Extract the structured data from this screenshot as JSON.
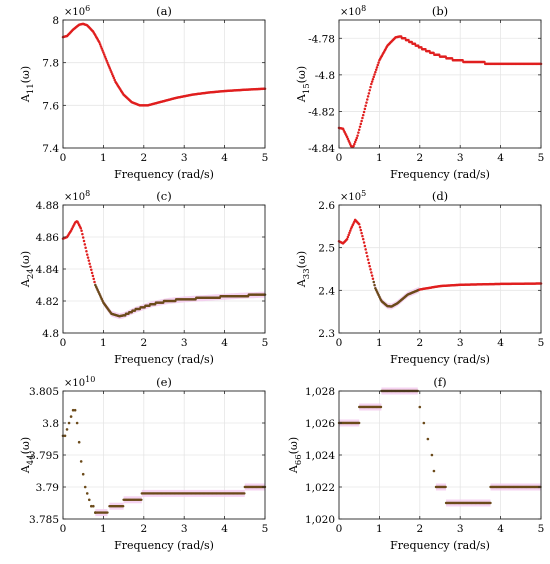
{
  "figure": {
    "description": ""
  },
  "chart_data": [
    {
      "type": "scatter",
      "title": "(a)",
      "xlabel": "Frequency (rad/s)",
      "ylabel": "A11(ω)",
      "ylabel_main": "A",
      "ylabel_sub": "11",
      "ylabel_tail": "(ω)",
      "exponent": "×10",
      "exponent_power": "6",
      "xlim": [
        0,
        5
      ],
      "ylim": [
        7.4,
        8.0
      ],
      "xticks": [
        0,
        1,
        2,
        3,
        4,
        5
      ],
      "xtick_labels": [
        "0",
        "1",
        "2",
        "3",
        "4",
        "5"
      ],
      "yticks": [
        7.4,
        7.6,
        7.8,
        8.0
      ],
      "ytick_labels": [
        "7.4",
        "7.6",
        "7.8",
        "8"
      ],
      "grid": true,
      "color": "#e01f1f",
      "curve": [
        [
          0,
          7.92
        ],
        [
          0.1,
          7.925
        ],
        [
          0.25,
          7.955
        ],
        [
          0.4,
          7.978
        ],
        [
          0.5,
          7.982
        ],
        [
          0.6,
          7.975
        ],
        [
          0.75,
          7.945
        ],
        [
          0.9,
          7.895
        ],
        [
          1.1,
          7.8
        ],
        [
          1.3,
          7.71
        ],
        [
          1.5,
          7.65
        ],
        [
          1.7,
          7.615
        ],
        [
          1.9,
          7.6
        ],
        [
          2.1,
          7.6
        ],
        [
          2.4,
          7.615
        ],
        [
          2.8,
          7.635
        ],
        [
          3.2,
          7.65
        ],
        [
          3.6,
          7.66
        ],
        [
          4.0,
          7.667
        ],
        [
          4.5,
          7.673
        ],
        [
          5.0,
          7.678
        ]
      ]
    },
    {
      "type": "scatter",
      "title": "(b)",
      "xlabel": "Frequency (rad/s)",
      "ylabel": "A15(ω)",
      "ylabel_main": "A",
      "ylabel_sub": "15",
      "ylabel_tail": "(ω)",
      "exponent": "×10",
      "exponent_power": "8",
      "xlim": [
        0,
        5
      ],
      "ylim": [
        -4.84,
        -4.77
      ],
      "xticks": [
        0,
        1,
        2,
        3,
        4,
        5
      ],
      "xtick_labels": [
        "0",
        "1",
        "2",
        "3",
        "4",
        "5"
      ],
      "yticks": [
        -4.84,
        -4.82,
        -4.8,
        -4.78
      ],
      "ytick_labels": [
        "-4.84",
        "-4.82",
        "-4.8",
        "-4.78"
      ],
      "grid": true,
      "color": "#e01f1f",
      "curve": [
        [
          0,
          -4.829
        ],
        [
          0.1,
          -4.8295
        ],
        [
          0.2,
          -4.834
        ],
        [
          0.3,
          -4.839
        ],
        [
          0.35,
          -4.8395
        ],
        [
          0.45,
          -4.834
        ],
        [
          0.6,
          -4.822
        ],
        [
          0.8,
          -4.805
        ],
        [
          1.0,
          -4.792
        ],
        [
          1.2,
          -4.784
        ],
        [
          1.4,
          -4.7795
        ],
        [
          1.5,
          -4.779
        ],
        [
          1.7,
          -4.781
        ],
        [
          2.0,
          -4.785
        ],
        [
          2.4,
          -4.789
        ],
        [
          2.8,
          -4.7915
        ],
        [
          3.2,
          -4.793
        ],
        [
          3.6,
          -4.7935
        ],
        [
          4.0,
          -4.794
        ],
        [
          5.0,
          -4.794
        ]
      ],
      "steps_after": 1.5,
      "step": 0.001
    },
    {
      "type": "scatter",
      "title": "(c)",
      "xlabel": "Frequency (rad/s)",
      "ylabel": "A24(ω)",
      "ylabel_main": "A",
      "ylabel_sub": "24",
      "ylabel_tail": "(ω)",
      "exponent": "×10",
      "exponent_power": "8",
      "xlim": [
        0,
        5
      ],
      "ylim": [
        4.8,
        4.88
      ],
      "xticks": [
        0,
        1,
        2,
        3,
        4,
        5
      ],
      "xtick_labels": [
        "0",
        "1",
        "2",
        "3",
        "4",
        "5"
      ],
      "yticks": [
        4.8,
        4.82,
        4.84,
        4.86,
        4.88
      ],
      "ytick_labels": [
        "4.8",
        "4.82",
        "4.84",
        "4.86",
        "4.88"
      ],
      "grid": true,
      "color": "#e01f1f",
      "highlight_after": 0.8,
      "highlight_color": "#6b4a1a",
      "band_color": "#f3c8ee",
      "curve": [
        [
          0,
          4.859
        ],
        [
          0.1,
          4.86
        ],
        [
          0.2,
          4.864
        ],
        [
          0.3,
          4.869
        ],
        [
          0.35,
          4.87
        ],
        [
          0.45,
          4.865
        ],
        [
          0.6,
          4.849
        ],
        [
          0.8,
          4.83
        ],
        [
          1.0,
          4.819
        ],
        [
          1.2,
          4.812
        ],
        [
          1.4,
          4.8105
        ],
        [
          1.5,
          4.811
        ],
        [
          1.8,
          4.8145
        ],
        [
          2.2,
          4.818
        ],
        [
          2.6,
          4.82
        ],
        [
          3.0,
          4.821
        ],
        [
          3.6,
          4.822
        ],
        [
          4.2,
          4.823
        ],
        [
          5.0,
          4.824
        ]
      ],
      "steps_after": 1.5,
      "step": 0.001
    },
    {
      "type": "scatter",
      "title": "(d)",
      "xlabel": "Frequency (rad/s)",
      "ylabel": "A33(ω)",
      "ylabel_main": "A",
      "ylabel_sub": "33",
      "ylabel_tail": "(ω)",
      "exponent": "×10",
      "exponent_power": "5",
      "xlim": [
        0,
        5
      ],
      "ylim": [
        2.3,
        2.6
      ],
      "xticks": [
        0,
        1,
        2,
        3,
        4,
        5
      ],
      "xtick_labels": [
        "0",
        "1",
        "2",
        "3",
        "4",
        "5"
      ],
      "yticks": [
        2.3,
        2.4,
        2.5,
        2.6
      ],
      "ytick_labels": [
        "2.3",
        "2.4",
        "2.5",
        "2.6"
      ],
      "grid": true,
      "color": "#e01f1f",
      "highlight_from": 0.85,
      "highlight_to": 2.0,
      "highlight_color": "#6b4a1a",
      "band_color": "#f3c8ee",
      "curve": [
        [
          0,
          2.515
        ],
        [
          0.1,
          2.51
        ],
        [
          0.2,
          2.52
        ],
        [
          0.3,
          2.545
        ],
        [
          0.4,
          2.565
        ],
        [
          0.5,
          2.555
        ],
        [
          0.6,
          2.52
        ],
        [
          0.75,
          2.46
        ],
        [
          0.9,
          2.405
        ],
        [
          1.05,
          2.375
        ],
        [
          1.2,
          2.363
        ],
        [
          1.3,
          2.362
        ],
        [
          1.45,
          2.37
        ],
        [
          1.7,
          2.39
        ],
        [
          2.0,
          2.402
        ],
        [
          2.5,
          2.41
        ],
        [
          3.0,
          2.413
        ],
        [
          4.0,
          2.415
        ],
        [
          5.0,
          2.416
        ]
      ]
    },
    {
      "type": "scatter",
      "title": "(e)",
      "xlabel": "Frequency (rad/s)",
      "ylabel": "A44(ω)",
      "ylabel_main": "A",
      "ylabel_sub": "44",
      "ylabel_tail": "(ω)",
      "exponent": "×10",
      "exponent_power": "10",
      "xlim": [
        0,
        5
      ],
      "ylim": [
        3.785,
        3.805
      ],
      "xticks": [
        0,
        1,
        2,
        3,
        4,
        5
      ],
      "xtick_labels": [
        "0",
        "1",
        "2",
        "3",
        "4",
        "5"
      ],
      "yticks": [
        3.785,
        3.79,
        3.795,
        3.8,
        3.805
      ],
      "ytick_labels": [
        "3.785",
        "3.79",
        "3.795",
        "3.8",
        "3.805"
      ],
      "grid": true,
      "color": "#e01f1f",
      "highlight_after": 0.0,
      "highlight_color": "#6b4a1a",
      "band_color": "#f3c8ee",
      "dots": [
        [
          0.0,
          3.798
        ],
        [
          0.05,
          3.798
        ],
        [
          0.1,
          3.799
        ],
        [
          0.15,
          3.8
        ],
        [
          0.2,
          3.801
        ],
        [
          0.25,
          3.802
        ],
        [
          0.3,
          3.802
        ],
        [
          0.35,
          3.8
        ],
        [
          0.4,
          3.797
        ],
        [
          0.45,
          3.794
        ],
        [
          0.5,
          3.792
        ],
        [
          0.55,
          3.79
        ],
        [
          0.6,
          3.789
        ],
        [
          0.65,
          3.788
        ],
        [
          0.7,
          3.787
        ],
        [
          0.75,
          3.787
        ],
        [
          0.8,
          3.786
        ]
      ],
      "segments": [
        [
          0.8,
          1.1,
          3.786
        ],
        [
          1.15,
          1.5,
          3.787
        ],
        [
          1.5,
          1.95,
          3.788
        ],
        [
          1.95,
          4.5,
          3.789
        ],
        [
          4.5,
          5.0,
          3.79
        ]
      ]
    },
    {
      "type": "scatter",
      "title": "(f)",
      "xlabel": "Frequency (rad/s)",
      "ylabel": "A66(ω)",
      "ylabel_main": "A",
      "ylabel_sub": "66",
      "ylabel_tail": "(ω)",
      "exponent": "",
      "exponent_power": "",
      "xlim": [
        0,
        5
      ],
      "ylim": [
        1020,
        1028
      ],
      "xticks": [
        0,
        1,
        2,
        3,
        4,
        5
      ],
      "xtick_labels": [
        "0",
        "1",
        "2",
        "3",
        "4",
        "5"
      ],
      "yticks": [
        1020,
        1022,
        1024,
        1026,
        1028
      ],
      "ytick_labels": [
        "1,020",
        "1,022",
        "1,024",
        "1,026",
        "1,028"
      ],
      "grid": true,
      "color": "#e01f1f",
      "highlight_after": 0.0,
      "highlight_color": "#6b4a1a",
      "band_color": "#f3c8ee",
      "dots": [
        [
          2.0,
          1027
        ],
        [
          2.1,
          1026
        ],
        [
          2.2,
          1025
        ],
        [
          2.3,
          1024
        ],
        [
          2.35,
          1023
        ]
      ],
      "segments": [
        [
          0.0,
          0.5,
          1026
        ],
        [
          0.5,
          1.05,
          1027
        ],
        [
          1.05,
          1.95,
          1028
        ],
        [
          2.4,
          2.65,
          1022
        ],
        [
          2.65,
          3.75,
          1021
        ],
        [
          3.75,
          5.0,
          1022
        ]
      ]
    }
  ]
}
